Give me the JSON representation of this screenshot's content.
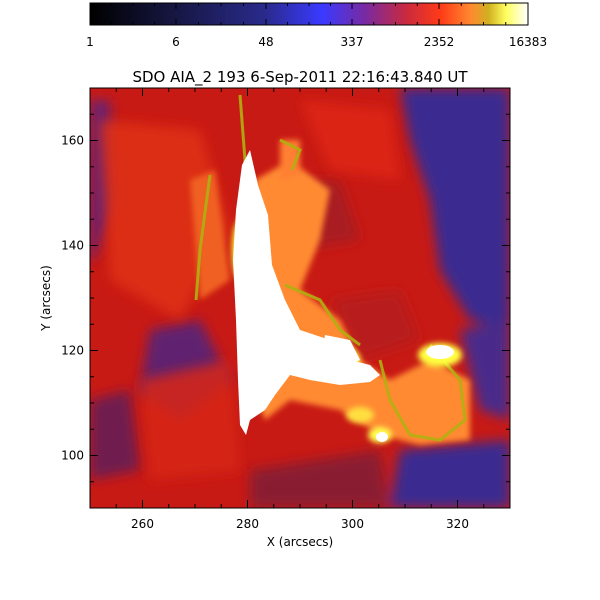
{
  "title": "SDO AIA_2 193   6-Sep-2011 22:16:43.840 UT",
  "colorbar": {
    "tick_labels": [
      "1",
      "6",
      "48",
      "337",
      "2352",
      "16383"
    ],
    "colors": [
      "#000000",
      "#14143a",
      "#2a1f8c",
      "#3840ff",
      "#6a2aa0",
      "#b02a50",
      "#e81a10",
      "#ff6a2a",
      "#ff9a30",
      "#e0e000",
      "#ffffa0",
      "#ffffff"
    ]
  },
  "axes": {
    "xlabel": "X (arcsecs)",
    "ylabel": "Y (arcsecs)",
    "x_ticks": [
      "260",
      "280",
      "300",
      "320"
    ],
    "y_ticks": [
      "100",
      "120",
      "140",
      "160"
    ],
    "xlim": [
      250,
      330
    ],
    "ylim": [
      90,
      170
    ]
  }
}
